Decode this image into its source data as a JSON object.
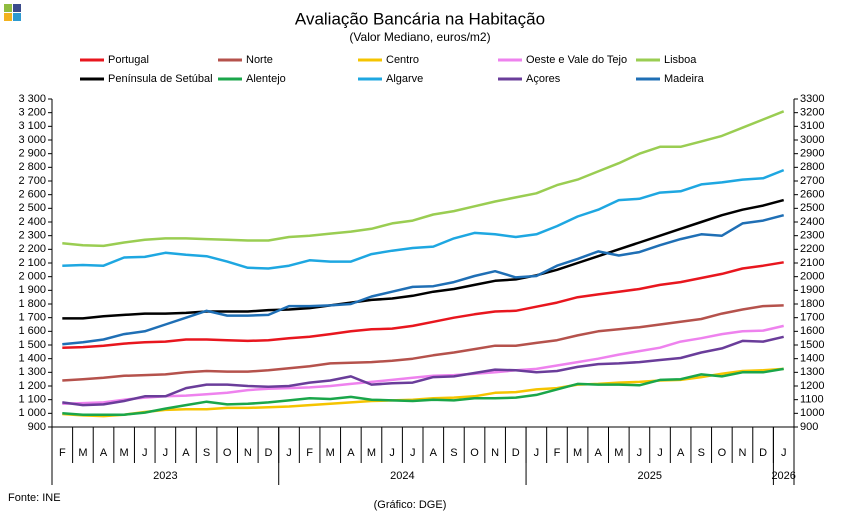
{
  "chart_data": {
    "type": "line",
    "title": "Avaliação Bancária na Habitação",
    "subtitle": "(Valor Mediano, euros/m2)",
    "source": "Fonte: INE",
    "credit": "(Gráfico: DGE)",
    "categories": [
      "F",
      "M",
      "A",
      "M",
      "J",
      "J",
      "A",
      "S",
      "O",
      "N",
      "D",
      "J",
      "F",
      "M",
      "A",
      "M",
      "J",
      "J",
      "A",
      "S",
      "O",
      "N",
      "D",
      "J",
      "F",
      "M",
      "A",
      "M",
      "J",
      "J",
      "A",
      "S",
      "O",
      "N",
      "D",
      "J"
    ],
    "x_groups": [
      {
        "label": "2023",
        "count": 11
      },
      {
        "label": "2024",
        "count": 12
      },
      {
        "label": "2025",
        "count": 12
      },
      {
        "label": "2026",
        "count": 1
      }
    ],
    "ylim": [
      900,
      3300
    ],
    "yticks": [
      {
        "value": 900,
        "label": "900"
      },
      {
        "value": 1000,
        "label": "1 000"
      },
      {
        "value": 1100,
        "label": "1 100"
      },
      {
        "value": 1200,
        "label": "1 200"
      },
      {
        "value": 1300,
        "label": "1 300"
      },
      {
        "value": 1400,
        "label": "1 400"
      },
      {
        "value": 1500,
        "label": "1 500"
      },
      {
        "value": 1600,
        "label": "1 600"
      },
      {
        "value": 1700,
        "label": "1 700"
      },
      {
        "value": 1800,
        "label": "1 800"
      },
      {
        "value": 1900,
        "label": "1 900"
      },
      {
        "value": 2000,
        "label": "2 000"
      },
      {
        "value": 2100,
        "label": "2 100"
      },
      {
        "value": 2200,
        "label": "2 200"
      },
      {
        "value": 2300,
        "label": "2 300"
      },
      {
        "value": 2400,
        "label": "2 400"
      },
      {
        "value": 2500,
        "label": "2 500"
      },
      {
        "value": 2600,
        "label": "2 600"
      },
      {
        "value": 2700,
        "label": "2 700"
      },
      {
        "value": 2800,
        "label": "2 800"
      },
      {
        "value": 2900,
        "label": "2 900"
      },
      {
        "value": 3000,
        "label": "3 000"
      },
      {
        "value": 3100,
        "label": "3 100"
      },
      {
        "value": 3200,
        "label": "3 200"
      },
      {
        "value": 3300,
        "label": "3 300"
      }
    ],
    "y2lim": [
      900,
      3300
    ],
    "y2ticks": [
      900,
      1000,
      1100,
      1200,
      1300,
      1400,
      1500,
      1600,
      1700,
      1800,
      1900,
      2000,
      2100,
      2200,
      2300,
      2400,
      2500,
      2600,
      2700,
      2800,
      2900,
      3000,
      3100,
      3200,
      3300
    ],
    "series": [
      {
        "name": "Portugal",
        "color": "#e8161e",
        "values": [
          1480,
          1485,
          1495,
          1510,
          1520,
          1525,
          1540,
          1540,
          1535,
          1530,
          1535,
          1550,
          1560,
          1580,
          1600,
          1615,
          1620,
          1640,
          1670,
          1700,
          1725,
          1745,
          1750,
          1780,
          1810,
          1850,
          1870,
          1890,
          1910,
          1940,
          1960,
          1990,
          2020,
          2060,
          2080,
          2105
        ]
      },
      {
        "name": "Norte",
        "color": "#b5524c",
        "values": [
          1240,
          1250,
          1260,
          1275,
          1280,
          1285,
          1300,
          1310,
          1305,
          1305,
          1315,
          1330,
          1345,
          1365,
          1370,
          1375,
          1385,
          1400,
          1425,
          1445,
          1470,
          1495,
          1495,
          1515,
          1535,
          1570,
          1600,
          1615,
          1630,
          1650,
          1670,
          1690,
          1730,
          1760,
          1785,
          1790
        ]
      },
      {
        "name": "Centro",
        "color": "#f5c400",
        "values": [
          995,
          985,
          980,
          990,
          1010,
          1025,
          1030,
          1030,
          1040,
          1040,
          1045,
          1050,
          1060,
          1070,
          1080,
          1090,
          1095,
          1100,
          1110,
          1115,
          1125,
          1150,
          1155,
          1175,
          1185,
          1210,
          1215,
          1225,
          1230,
          1240,
          1245,
          1265,
          1290,
          1310,
          1315,
          1325
        ]
      },
      {
        "name": "Oeste e Vale do Tejo",
        "color": "#ee82ee",
        "values": [
          1070,
          1075,
          1080,
          1100,
          1115,
          1125,
          1130,
          1140,
          1150,
          1170,
          1180,
          1185,
          1190,
          1200,
          1215,
          1230,
          1245,
          1260,
          1275,
          1280,
          1290,
          1300,
          1315,
          1325,
          1350,
          1375,
          1400,
          1430,
          1455,
          1480,
          1525,
          1550,
          1580,
          1600,
          1605,
          1640
        ]
      },
      {
        "name": "Lisboa",
        "color": "#9acd52",
        "values": [
          2245,
          2230,
          2225,
          2250,
          2270,
          2280,
          2280,
          2275,
          2270,
          2265,
          2265,
          2290,
          2300,
          2315,
          2330,
          2350,
          2390,
          2410,
          2455,
          2480,
          2515,
          2550,
          2580,
          2610,
          2670,
          2710,
          2770,
          2830,
          2900,
          2950,
          2950,
          2990,
          3030,
          3090,
          3150,
          3210
        ]
      },
      {
        "name": "Península de Setúbal",
        "color": "#000000",
        "values": [
          1695,
          1695,
          1710,
          1720,
          1730,
          1730,
          1735,
          1745,
          1745,
          1745,
          1755,
          1760,
          1770,
          1790,
          1810,
          1830,
          1840,
          1860,
          1890,
          1910,
          1940,
          1970,
          1980,
          2010,
          2050,
          2100,
          2150,
          2200,
          2250,
          2300,
          2350,
          2400,
          2450,
          2490,
          2520,
          2560
        ]
      },
      {
        "name": "Alentejo",
        "color": "#1aa64a",
        "values": [
          1000,
          990,
          990,
          990,
          1005,
          1035,
          1060,
          1085,
          1065,
          1070,
          1080,
          1095,
          1110,
          1105,
          1120,
          1100,
          1095,
          1090,
          1100,
          1095,
          1110,
          1110,
          1115,
          1135,
          1175,
          1215,
          1210,
          1210,
          1205,
          1245,
          1250,
          1285,
          1270,
          1300,
          1300,
          1325
        ]
      },
      {
        "name": "Algarve",
        "color": "#1ea7e1",
        "values": [
          2080,
          2085,
          2080,
          2140,
          2145,
          2175,
          2160,
          2150,
          2110,
          2065,
          2060,
          2080,
          2120,
          2110,
          2110,
          2165,
          2190,
          2210,
          2220,
          2280,
          2320,
          2310,
          2290,
          2310,
          2370,
          2440,
          2490,
          2560,
          2570,
          2615,
          2625,
          2675,
          2690,
          2710,
          2720,
          2780
        ]
      },
      {
        "name": "Açores",
        "color": "#6a3d9a",
        "values": [
          1080,
          1060,
          1065,
          1090,
          1125,
          1125,
          1185,
          1210,
          1210,
          1200,
          1195,
          1200,
          1225,
          1240,
          1270,
          1210,
          1220,
          1225,
          1265,
          1270,
          1295,
          1320,
          1315,
          1300,
          1310,
          1340,
          1360,
          1365,
          1375,
          1390,
          1405,
          1445,
          1475,
          1530,
          1525,
          1560
        ]
      },
      {
        "name": "Madeira",
        "color": "#1f6fb5",
        "values": [
          1505,
          1520,
          1540,
          1580,
          1600,
          1650,
          1700,
          1750,
          1715,
          1715,
          1720,
          1785,
          1785,
          1790,
          1800,
          1855,
          1890,
          1925,
          1930,
          1960,
          2005,
          2040,
          1995,
          2005,
          2080,
          2130,
          2185,
          2155,
          2180,
          2230,
          2275,
          2310,
          2300,
          2390,
          2410,
          2450
        ]
      }
    ]
  }
}
